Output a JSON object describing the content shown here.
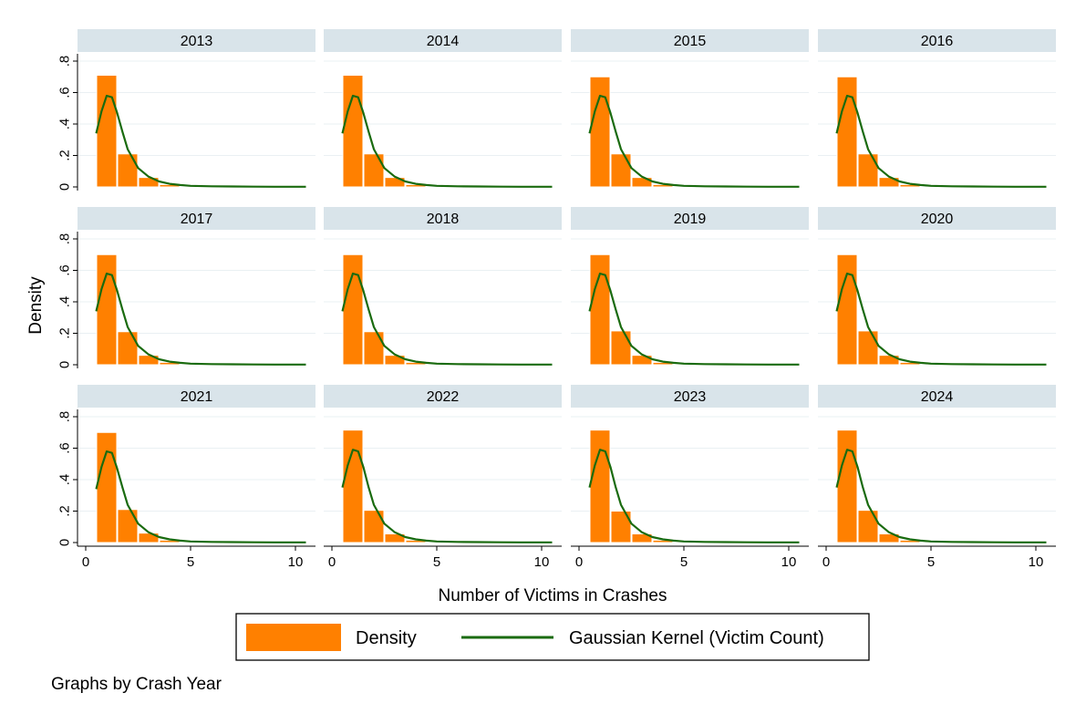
{
  "chart_data": {
    "type": "bar",
    "subtype": "faceted histogram with kernel density overlay",
    "xlabel": "Number of Victims in Crashes",
    "ylabel": "Density",
    "xlim": [
      0,
      10.5
    ],
    "ylim": [
      0,
      0.8
    ],
    "x_ticks": [
      0,
      5,
      10
    ],
    "x_tick_labels": [
      "0",
      "5",
      "10"
    ],
    "y_ticks": [
      0,
      0.2,
      0.4,
      0.6,
      0.8
    ],
    "y_tick_labels": [
      "0",
      ".2",
      ".4",
      ".6",
      ".8"
    ],
    "grid": true,
    "legend_position": "bottom",
    "legend": [
      {
        "label": "Density",
        "kind": "bar",
        "color": "#ff8000"
      },
      {
        "label": "Gaussian Kernel (Victim Count)",
        "kind": "line",
        "color": "#1a6b0f"
      }
    ],
    "note": "Graphs by Crash Year",
    "bin_centers": [
      1,
      2,
      3,
      4,
      5,
      6,
      7,
      8,
      9,
      10
    ],
    "bin_width": 1,
    "kernel_curve_x": [
      0.5,
      0.75,
      1.0,
      1.25,
      1.5,
      1.75,
      2.0,
      2.5,
      3.0,
      3.5,
      4.0,
      4.5,
      5.0,
      6.0,
      7.0,
      8.0,
      9.0,
      10.0,
      10.5
    ],
    "facets": [
      {
        "year": "2013",
        "bars": [
          0.71,
          0.21,
          0.06,
          0.015,
          0.005,
          0.003,
          0.002,
          0.001,
          0.001,
          0.001
        ],
        "kernel": [
          0.34,
          0.48,
          0.58,
          0.57,
          0.47,
          0.35,
          0.24,
          0.12,
          0.065,
          0.035,
          0.02,
          0.012,
          0.007,
          0.004,
          0.003,
          0.002,
          0.001,
          0.001,
          0.001
        ]
      },
      {
        "year": "2014",
        "bars": [
          0.71,
          0.21,
          0.06,
          0.015,
          0.005,
          0.003,
          0.002,
          0.001,
          0.001,
          0.001
        ],
        "kernel": [
          0.34,
          0.48,
          0.58,
          0.57,
          0.47,
          0.35,
          0.24,
          0.12,
          0.065,
          0.035,
          0.02,
          0.012,
          0.007,
          0.004,
          0.003,
          0.002,
          0.001,
          0.001,
          0.001
        ]
      },
      {
        "year": "2015",
        "bars": [
          0.7,
          0.21,
          0.06,
          0.015,
          0.005,
          0.003,
          0.002,
          0.001,
          0.001,
          0.001
        ],
        "kernel": [
          0.34,
          0.48,
          0.58,
          0.57,
          0.47,
          0.35,
          0.24,
          0.12,
          0.065,
          0.035,
          0.02,
          0.012,
          0.007,
          0.004,
          0.003,
          0.002,
          0.001,
          0.001,
          0.001
        ]
      },
      {
        "year": "2016",
        "bars": [
          0.7,
          0.21,
          0.06,
          0.015,
          0.005,
          0.003,
          0.002,
          0.001,
          0.001,
          0.001
        ],
        "kernel": [
          0.34,
          0.48,
          0.58,
          0.57,
          0.47,
          0.35,
          0.24,
          0.12,
          0.065,
          0.035,
          0.02,
          0.012,
          0.007,
          0.004,
          0.003,
          0.002,
          0.001,
          0.001,
          0.001
        ]
      },
      {
        "year": "2017",
        "bars": [
          0.7,
          0.21,
          0.06,
          0.015,
          0.005,
          0.003,
          0.002,
          0.001,
          0.001,
          0.001
        ],
        "kernel": [
          0.34,
          0.48,
          0.58,
          0.57,
          0.47,
          0.35,
          0.24,
          0.12,
          0.065,
          0.035,
          0.02,
          0.012,
          0.007,
          0.004,
          0.003,
          0.002,
          0.001,
          0.001,
          0.001
        ]
      },
      {
        "year": "2018",
        "bars": [
          0.7,
          0.21,
          0.06,
          0.015,
          0.005,
          0.003,
          0.002,
          0.001,
          0.001,
          0.001
        ],
        "kernel": [
          0.34,
          0.48,
          0.58,
          0.57,
          0.47,
          0.35,
          0.24,
          0.12,
          0.065,
          0.035,
          0.02,
          0.012,
          0.007,
          0.004,
          0.003,
          0.002,
          0.001,
          0.001,
          0.001
        ]
      },
      {
        "year": "2019",
        "bars": [
          0.7,
          0.215,
          0.06,
          0.015,
          0.005,
          0.003,
          0.002,
          0.001,
          0.001,
          0.001
        ],
        "kernel": [
          0.34,
          0.48,
          0.58,
          0.57,
          0.47,
          0.35,
          0.24,
          0.12,
          0.065,
          0.035,
          0.02,
          0.012,
          0.007,
          0.004,
          0.003,
          0.002,
          0.001,
          0.001,
          0.001
        ]
      },
      {
        "year": "2020",
        "bars": [
          0.7,
          0.215,
          0.06,
          0.015,
          0.005,
          0.003,
          0.002,
          0.001,
          0.001,
          0.001
        ],
        "kernel": [
          0.34,
          0.48,
          0.58,
          0.57,
          0.47,
          0.35,
          0.24,
          0.12,
          0.065,
          0.035,
          0.02,
          0.012,
          0.007,
          0.004,
          0.003,
          0.002,
          0.001,
          0.001,
          0.001
        ]
      },
      {
        "year": "2021",
        "bars": [
          0.7,
          0.21,
          0.06,
          0.015,
          0.005,
          0.003,
          0.002,
          0.001,
          0.001,
          0.001
        ],
        "kernel": [
          0.34,
          0.48,
          0.58,
          0.57,
          0.47,
          0.35,
          0.24,
          0.12,
          0.065,
          0.035,
          0.02,
          0.012,
          0.007,
          0.004,
          0.003,
          0.002,
          0.001,
          0.001,
          0.001
        ]
      },
      {
        "year": "2022",
        "bars": [
          0.715,
          0.205,
          0.055,
          0.015,
          0.005,
          0.003,
          0.002,
          0.001,
          0.001,
          0.001
        ],
        "kernel": [
          0.35,
          0.49,
          0.59,
          0.58,
          0.48,
          0.35,
          0.24,
          0.12,
          0.065,
          0.035,
          0.02,
          0.012,
          0.007,
          0.004,
          0.003,
          0.002,
          0.001,
          0.001,
          0.001
        ]
      },
      {
        "year": "2023",
        "bars": [
          0.715,
          0.2,
          0.055,
          0.015,
          0.005,
          0.003,
          0.002,
          0.001,
          0.001,
          0.001
        ],
        "kernel": [
          0.35,
          0.49,
          0.59,
          0.58,
          0.48,
          0.35,
          0.24,
          0.12,
          0.065,
          0.035,
          0.02,
          0.012,
          0.007,
          0.004,
          0.003,
          0.002,
          0.001,
          0.001,
          0.001
        ]
      },
      {
        "year": "2024",
        "bars": [
          0.715,
          0.205,
          0.055,
          0.015,
          0.005,
          0.003,
          0.002,
          0.001,
          0.001,
          0.001
        ],
        "kernel": [
          0.35,
          0.49,
          0.59,
          0.58,
          0.48,
          0.35,
          0.24,
          0.12,
          0.065,
          0.035,
          0.02,
          0.012,
          0.007,
          0.004,
          0.003,
          0.002,
          0.001,
          0.001,
          0.001
        ]
      }
    ]
  },
  "colors": {
    "bar_fill": "#ff8000",
    "kernel_line": "#1a6b0f",
    "strip_bg": "#d9e4ea",
    "grid": "#eaf0f3"
  }
}
